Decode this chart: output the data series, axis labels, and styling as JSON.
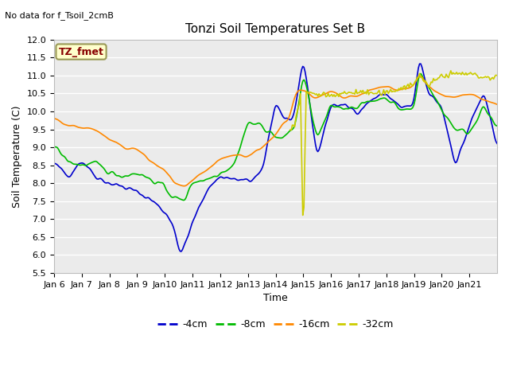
{
  "title": "Tonzi Soil Temperatures Set B",
  "no_data_label": "No data for f_Tsoil_2cmB",
  "tz_fmet_label": "TZ_fmet",
  "xlabel": "Time",
  "ylabel": "Soil Temperature (C)",
  "ylim": [
    5.5,
    12.0
  ],
  "yticks": [
    5.5,
    6.0,
    6.5,
    7.0,
    7.5,
    8.0,
    8.5,
    9.0,
    9.5,
    10.0,
    10.5,
    11.0,
    11.5,
    12.0
  ],
  "x_labels": [
    "Jan 6",
    "Jan 7",
    "Jan 8",
    "Jan 9",
    "Jan 10",
    "Jan 11",
    "Jan 12",
    "Jan 13",
    "Jan 14",
    "Jan 15",
    "Jan 16",
    "Jan 17",
    "Jan 18",
    "Jan 19",
    "Jan 20",
    "Jan 21"
  ],
  "colors": {
    "4cm": "#0000cc",
    "8cm": "#00bb00",
    "16cm": "#ff8800",
    "32cm": "#cccc00"
  },
  "fig_bg_color": "#ffffff",
  "plot_bg_color": "#ebebeb",
  "grid_color": "#ffffff",
  "title_fontsize": 11,
  "axis_label_fontsize": 9,
  "tick_fontsize": 8,
  "n_points": 384
}
